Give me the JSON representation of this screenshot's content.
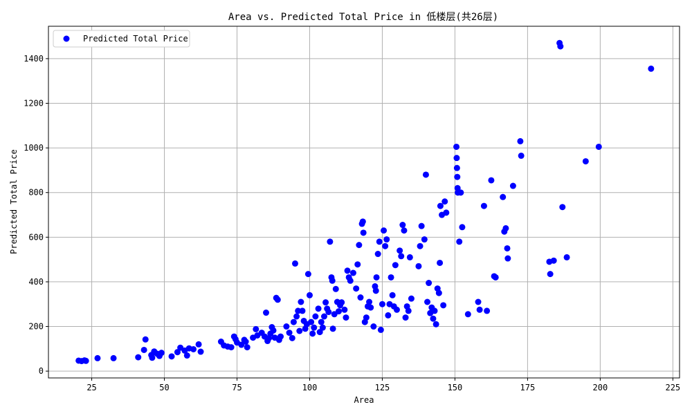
{
  "chart_data": {
    "type": "scatter",
    "title": "Area vs. Predicted Total Price in 低楼层(共26层)",
    "xlabel": "Area",
    "ylabel": "Predicted Total Price",
    "xlim": [
      10.1,
      227.3
    ],
    "ylim": [
      -30.5,
      1545.1
    ],
    "xticks": [
      25,
      50,
      75,
      100,
      125,
      150,
      175,
      200,
      225
    ],
    "yticks": [
      0,
      200,
      400,
      600,
      800,
      1000,
      1200,
      1400
    ],
    "grid": true,
    "legend_position": "upper-left",
    "series": [
      {
        "name": "Predicted Total Price",
        "color": "#0000ff",
        "points": [
          [
            20.5,
            47
          ],
          [
            21.5,
            45
          ],
          [
            22.5,
            48
          ],
          [
            23,
            46
          ],
          [
            27,
            58
          ],
          [
            32.5,
            58
          ],
          [
            41,
            62
          ],
          [
            43.5,
            142
          ],
          [
            43,
            95
          ],
          [
            45.5,
            72
          ],
          [
            45.8,
            60
          ],
          [
            46.5,
            88
          ],
          [
            47.5,
            78
          ],
          [
            48.3,
            68
          ],
          [
            49,
            82
          ],
          [
            52.5,
            66
          ],
          [
            54.5,
            85
          ],
          [
            55.5,
            105
          ],
          [
            57,
            92
          ],
          [
            57.8,
            70
          ],
          [
            58.5,
            102
          ],
          [
            60,
            98
          ],
          [
            61.8,
            120
          ],
          [
            62.5,
            87
          ],
          [
            69.5,
            132
          ],
          [
            70.5,
            115
          ],
          [
            71.8,
            110
          ],
          [
            73,
            107
          ],
          [
            74,
            155
          ],
          [
            74.5,
            143
          ],
          [
            75,
            128
          ],
          [
            76.5,
            118
          ],
          [
            77.5,
            140
          ],
          [
            78,
            132
          ],
          [
            78.5,
            107
          ],
          [
            80.5,
            150
          ],
          [
            81.5,
            188
          ],
          [
            82,
            160
          ],
          [
            83.5,
            172
          ],
          [
            84.5,
            155
          ],
          [
            85,
            262
          ],
          [
            85.5,
            135
          ],
          [
            86,
            148
          ],
          [
            86.5,
            168
          ],
          [
            87,
            197
          ],
          [
            87.5,
            182
          ],
          [
            88,
            150
          ],
          [
            88.5,
            328
          ],
          [
            89,
            320
          ],
          [
            89.5,
            140
          ],
          [
            90,
            155
          ],
          [
            92,
            200
          ],
          [
            93,
            172
          ],
          [
            94,
            148
          ],
          [
            94.5,
            220
          ],
          [
            95,
            482
          ],
          [
            95.5,
            245
          ],
          [
            96,
            270
          ],
          [
            96.5,
            180
          ],
          [
            97,
            310
          ],
          [
            97.5,
            270
          ],
          [
            98,
            225
          ],
          [
            98.5,
            190
          ],
          [
            99,
            210
          ],
          [
            99.5,
            435
          ],
          [
            100,
            340
          ],
          [
            100.5,
            220
          ],
          [
            101,
            168
          ],
          [
            101.5,
            195
          ],
          [
            102,
            245
          ],
          [
            103,
            280
          ],
          [
            103.5,
            175
          ],
          [
            104,
            220
          ],
          [
            104.5,
            195
          ],
          [
            105,
            245
          ],
          [
            105.5,
            308
          ],
          [
            106,
            280
          ],
          [
            106.5,
            265
          ],
          [
            107,
            580
          ],
          [
            107.5,
            420
          ],
          [
            107.8,
            405
          ],
          [
            108,
            190
          ],
          [
            108.5,
            255
          ],
          [
            109,
            368
          ],
          [
            109.5,
            310
          ],
          [
            110,
            268
          ],
          [
            110.5,
            295
          ],
          [
            111,
            308
          ],
          [
            112,
            275
          ],
          [
            112.5,
            240
          ],
          [
            113,
            450
          ],
          [
            113.5,
            420
          ],
          [
            114,
            405
          ],
          [
            115,
            440
          ],
          [
            116,
            370
          ],
          [
            116.5,
            478
          ],
          [
            117,
            565
          ],
          [
            117.5,
            330
          ],
          [
            118,
            660
          ],
          [
            118.3,
            670
          ],
          [
            118.5,
            620
          ],
          [
            119,
            220
          ],
          [
            119.5,
            240
          ],
          [
            120,
            290
          ],
          [
            120.5,
            310
          ],
          [
            121,
            285
          ],
          [
            122,
            200
          ],
          [
            122.5,
            380
          ],
          [
            122.8,
            360
          ],
          [
            123,
            420
          ],
          [
            123.5,
            525
          ],
          [
            124,
            580
          ],
          [
            124.5,
            185
          ],
          [
            125,
            300
          ],
          [
            125.5,
            630
          ],
          [
            126,
            560
          ],
          [
            126.5,
            590
          ],
          [
            127,
            250
          ],
          [
            127.5,
            300
          ],
          [
            128,
            420
          ],
          [
            128.5,
            340
          ],
          [
            129,
            290
          ],
          [
            129.5,
            475
          ],
          [
            130,
            275
          ],
          [
            131,
            540
          ],
          [
            131.5,
            515
          ],
          [
            132,
            655
          ],
          [
            132.5,
            630
          ],
          [
            133,
            240
          ],
          [
            133.5,
            290
          ],
          [
            134,
            270
          ],
          [
            134.5,
            510
          ],
          [
            135,
            325
          ],
          [
            137.5,
            470
          ],
          [
            138,
            560
          ],
          [
            138.5,
            650
          ],
          [
            139.5,
            590
          ],
          [
            140,
            880
          ],
          [
            140.5,
            310
          ],
          [
            141,
            395
          ],
          [
            141.5,
            260
          ],
          [
            142,
            285
          ],
          [
            142.5,
            235
          ],
          [
            143,
            270
          ],
          [
            143.5,
            210
          ],
          [
            144,
            370
          ],
          [
            144.5,
            350
          ],
          [
            144.8,
            485
          ],
          [
            145,
            740
          ],
          [
            145.5,
            700
          ],
          [
            146,
            295
          ],
          [
            146.5,
            760
          ],
          [
            147,
            710
          ],
          [
            150.5,
            1005
          ],
          [
            150.6,
            955
          ],
          [
            150.7,
            910
          ],
          [
            150.8,
            870
          ],
          [
            150.9,
            820
          ],
          [
            151,
            800
          ],
          [
            151.5,
            580
          ],
          [
            152,
            800
          ],
          [
            152.5,
            645
          ],
          [
            154.5,
            255
          ],
          [
            158,
            310
          ],
          [
            158.5,
            275
          ],
          [
            160,
            740
          ],
          [
            161,
            270
          ],
          [
            162.5,
            855
          ],
          [
            163.5,
            425
          ],
          [
            164,
            420
          ],
          [
            166.5,
            780
          ],
          [
            167,
            625
          ],
          [
            167.5,
            640
          ],
          [
            168,
            550
          ],
          [
            168.2,
            505
          ],
          [
            170,
            830
          ],
          [
            172.5,
            1030
          ],
          [
            172.8,
            965
          ],
          [
            182.5,
            490
          ],
          [
            182.8,
            435
          ],
          [
            184,
            495
          ],
          [
            186,
            1470
          ],
          [
            186.3,
            1455
          ],
          [
            187,
            735
          ],
          [
            188.5,
            510
          ],
          [
            195,
            940
          ],
          [
            199.5,
            1005
          ],
          [
            217.5,
            1355
          ]
        ]
      }
    ]
  }
}
